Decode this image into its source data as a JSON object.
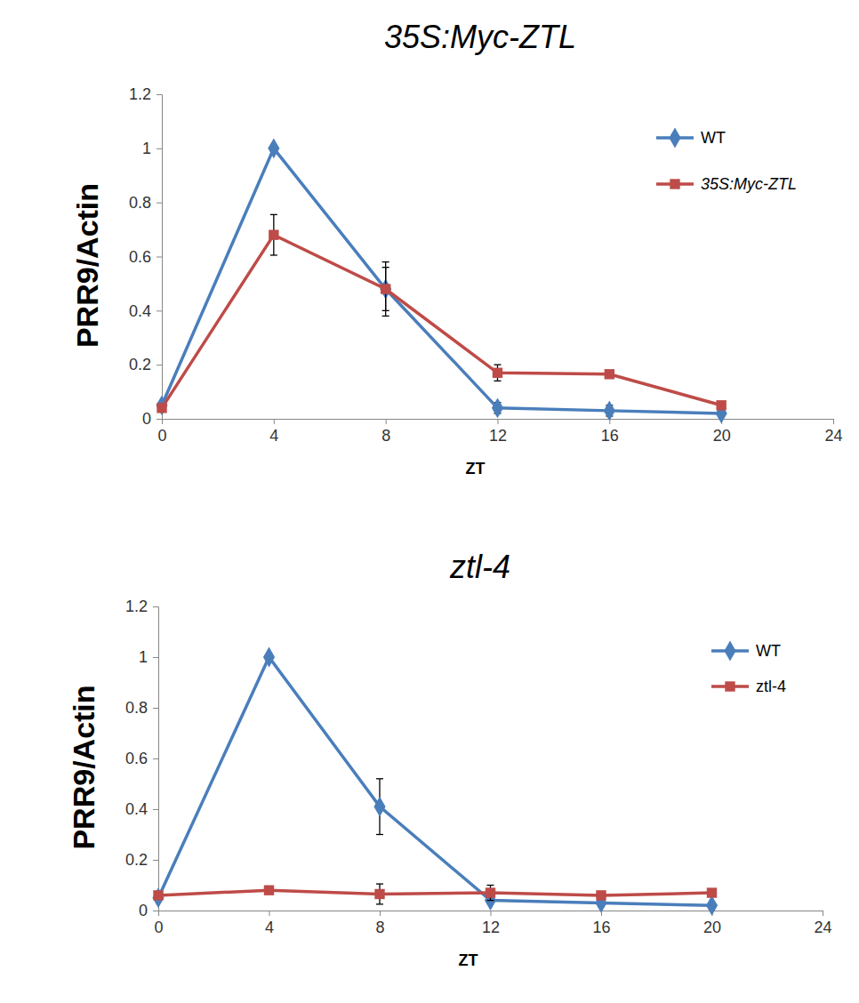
{
  "chart_data": [
    {
      "type": "line",
      "title": "35S:Myc-ZTL",
      "x_label": "ZT",
      "y_label": "PRR9/Actin",
      "x": [
        0,
        4,
        8,
        12,
        16,
        20
      ],
      "xlim": [
        0,
        24
      ],
      "xticks": [
        0,
        4,
        8,
        12,
        16,
        20,
        24
      ],
      "ylim": [
        0,
        1.2
      ],
      "yticks": [
        0,
        0.2,
        0.4,
        0.6,
        0.8,
        1,
        1.2
      ],
      "grid": false,
      "legend": "upper right",
      "series": [
        {
          "name": "WT",
          "color": "#4a7ebb",
          "marker": "diamond",
          "line_style": "solid",
          "values": [
            0.05,
            1,
            0.48,
            0.04,
            0.03,
            0.02
          ],
          "errors": [
            null,
            null,
            0.08,
            0.02,
            0.02,
            null
          ]
        },
        {
          "name": "35S:Myc-ZTL",
          "color": "#be4b48",
          "marker": "square",
          "line_style": "solid",
          "values": [
            0.04,
            0.68,
            0.48,
            0.17,
            0.165,
            0.05
          ],
          "errors": [
            null,
            0.075,
            0.1,
            0.03,
            null,
            null
          ]
        }
      ]
    },
    {
      "type": "line",
      "title": "ztl-4",
      "x_label": "ZT",
      "y_label": "PRR9/Actin",
      "x": [
        0,
        4,
        8,
        12,
        16,
        20
      ],
      "xlim": [
        0,
        24
      ],
      "xticks": [
        0,
        4,
        8,
        12,
        16,
        20,
        24
      ],
      "ylim": [
        0,
        1.2
      ],
      "yticks": [
        0,
        0.2,
        0.4,
        0.6,
        0.8,
        1,
        1.2
      ],
      "grid": false,
      "legend": "upper right",
      "series": [
        {
          "name": "WT",
          "color": "#4a7ebb",
          "marker": "diamond",
          "line_style": "solid",
          "values": [
            0.05,
            1,
            0.41,
            0.04,
            0.03,
            0.02
          ],
          "errors": [
            null,
            null,
            0.11,
            null,
            null,
            null
          ]
        },
        {
          "name": "ztl-4",
          "color": "#be4b48",
          "marker": "square",
          "line_style": "solid",
          "values": [
            0.06,
            0.08,
            0.065,
            0.07,
            0.06,
            0.07
          ],
          "errors": [
            null,
            null,
            0.04,
            0.03,
            null,
            null
          ]
        }
      ]
    }
  ]
}
